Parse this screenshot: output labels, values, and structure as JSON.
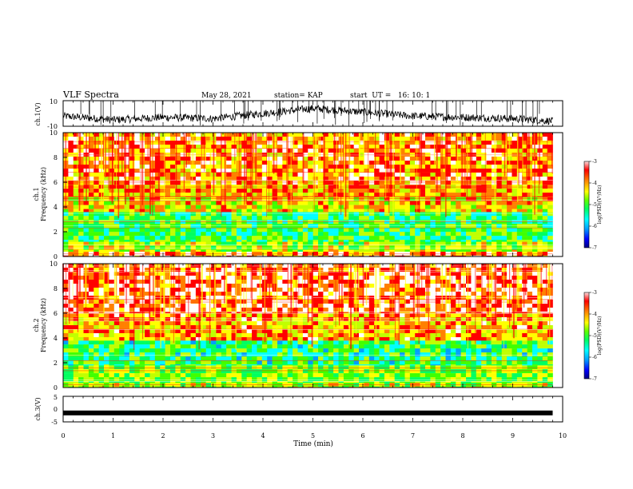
{
  "header": {
    "title": "VLF Spectra",
    "date": "May 28, 2021",
    "station": "station= KAP",
    "start_ut": "start  UT =   16: 10: 1"
  },
  "colors": {
    "colormap": [
      "#000080",
      "#0000ff",
      "#00a0ff",
      "#00ffff",
      "#00ff60",
      "#40ff00",
      "#c0ff00",
      "#ffff00",
      "#ff8000",
      "#ff0000",
      "#ffffff"
    ],
    "trace": "#000000"
  },
  "chart_data": [
    {
      "type": "line",
      "panel": "ch1-waveform",
      "ylabel": "ch.1(V)",
      "ylim": [
        -10,
        10
      ],
      "yticks": [
        "10",
        "-10"
      ],
      "xlim": [
        0,
        10
      ],
      "approx_trace": {
        "t": [
          0,
          1,
          2,
          3,
          4,
          5,
          6,
          7,
          8,
          9,
          9.8
        ],
        "v": [
          -2,
          -5,
          -3,
          -4,
          0,
          4,
          1,
          -2,
          -3,
          -4,
          -6
        ]
      }
    },
    {
      "type": "heatmap",
      "panel": "ch1-spectrogram",
      "ylabel": "ch.1",
      "ylabel2": "Frequency (kHz)",
      "yticks": [
        "0",
        "2",
        "4",
        "6",
        "8",
        "10"
      ],
      "ylim": [
        0,
        10
      ],
      "xlim": [
        0,
        10
      ],
      "data_end_min": 9.8,
      "colorbar": {
        "label": "log(PSD)(V²/Hz)",
        "ticks": [
          "-3",
          "-4",
          "-5",
          "-6",
          "-7"
        ],
        "range": [
          -7,
          -3
        ]
      },
      "bands_kHz": [
        {
          "f": [
            0,
            0.4
          ],
          "level": -3.6
        },
        {
          "f": [
            0.4,
            1.2
          ],
          "level": -4.6
        },
        {
          "f": [
            1.2,
            3.6
          ],
          "level": -5.2
        },
        {
          "f": [
            3.6,
            4.8
          ],
          "level": -4.3
        },
        {
          "f": [
            4.8,
            5.8
          ],
          "level": -4.0
        },
        {
          "f": [
            5.8,
            10
          ],
          "level": -3.7
        }
      ]
    },
    {
      "type": "heatmap",
      "panel": "ch2-spectrogram",
      "ylabel": "ch.2",
      "ylabel2": "Frequency (kHz)",
      "yticks": [
        "0",
        "2",
        "4",
        "6",
        "8",
        "10"
      ],
      "ylim": [
        0,
        10
      ],
      "xlim": [
        0,
        10
      ],
      "data_end_min": 9.8,
      "colorbar": {
        "label": "log(PSD)(V²/Hz)",
        "ticks": [
          "-3",
          "-4",
          "-5",
          "-6",
          "-7"
        ],
        "range": [
          -7,
          -3
        ]
      },
      "bands_kHz": [
        {
          "f": [
            0,
            0.4
          ],
          "level": -4.6
        },
        {
          "f": [
            0.4,
            1.8
          ],
          "level": -4.8
        },
        {
          "f": [
            1.8,
            3.8
          ],
          "level": -5.3
        },
        {
          "f": [
            3.8,
            6.0
          ],
          "level": -3.9
        },
        {
          "f": [
            6.0,
            10
          ],
          "level": -3.4
        }
      ]
    },
    {
      "type": "line",
      "panel": "ch3-waveform",
      "ylabel": "ch.3(V)",
      "ylim": [
        -5,
        5
      ],
      "yticks": [
        "5",
        "0",
        "-5"
      ],
      "xlim": [
        0,
        10
      ],
      "approx_trace": {
        "t": [
          0,
          9.8
        ],
        "v": [
          -1.5,
          -1.5
        ]
      }
    }
  ],
  "xaxis": {
    "label": "Time (min)",
    "ticks": [
      "0",
      "1",
      "2",
      "3",
      "4",
      "5",
      "6",
      "7",
      "8",
      "9",
      "10"
    ]
  }
}
